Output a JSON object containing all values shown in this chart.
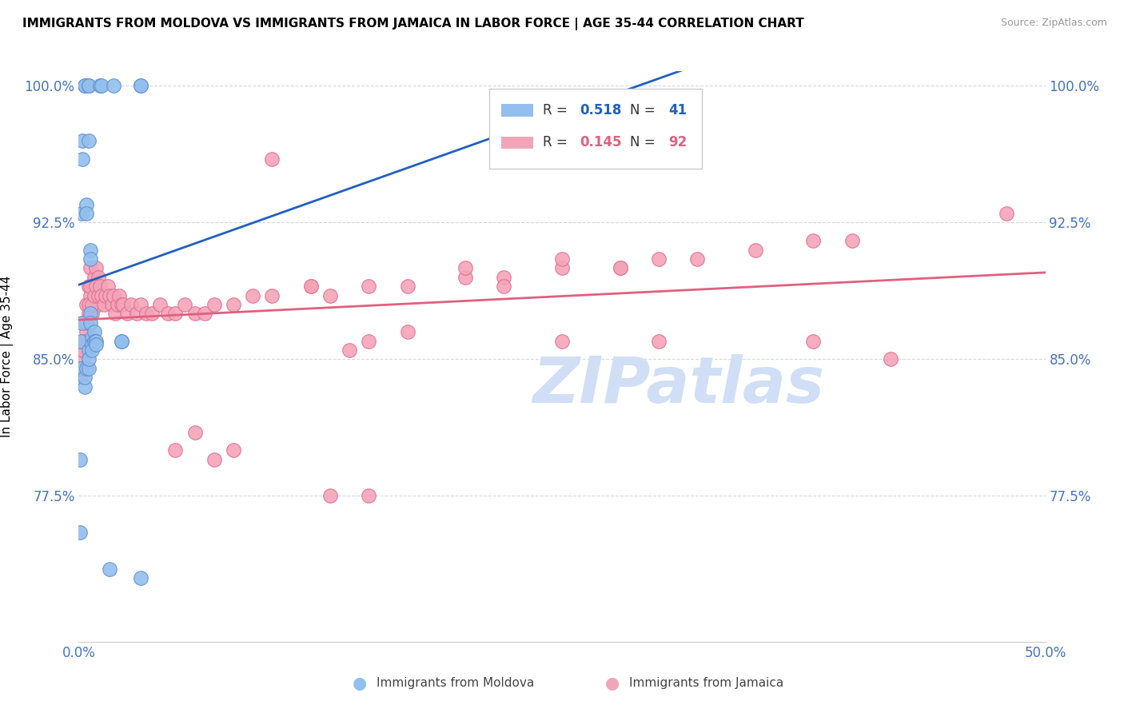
{
  "title": "IMMIGRANTS FROM MOLDOVA VS IMMIGRANTS FROM JAMAICA IN LABOR FORCE | AGE 35-44 CORRELATION CHART",
  "source": "Source: ZipAtlas.com",
  "ylabel": "In Labor Force | Age 35-44",
  "xlim": [
    0.0,
    0.5
  ],
  "ylim": [
    0.695,
    1.008
  ],
  "xticks": [
    0.0,
    0.1,
    0.2,
    0.3,
    0.4,
    0.5
  ],
  "xticklabels": [
    "0.0%",
    "",
    "",
    "",
    "",
    "50.0%"
  ],
  "yticks": [
    0.775,
    0.85,
    0.925,
    1.0
  ],
  "yticklabels": [
    "77.5%",
    "85.0%",
    "92.5%",
    "100.0%"
  ],
  "tick_color": "#4472C4",
  "grid_color": "#d0d8e8",
  "moldova_color": "#92BFEE",
  "jamaica_color": "#F4A4B8",
  "moldova_edge_color": "#6090CC",
  "jamaica_edge_color": "#E07090",
  "moldova_line_color": "#2060C0",
  "jamaica_line_color": "#E06080",
  "moldova_R": 0.518,
  "moldova_N": 41,
  "jamaica_R": 0.145,
  "jamaica_N": 92,
  "watermark": "ZIPatlas",
  "watermark_color": "#D0DFF5",
  "moldova_x": [
    0.0008,
    0.0008,
    0.001,
    0.001,
    0.0015,
    0.0015,
    0.002,
    0.002,
    0.003,
    0.003,
    0.003,
    0.003,
    0.004,
    0.004,
    0.004,
    0.005,
    0.005,
    0.005,
    0.005,
    0.005,
    0.005,
    0.006,
    0.006,
    0.006,
    0.006,
    0.007,
    0.007,
    0.007,
    0.008,
    0.008,
    0.009,
    0.009,
    0.011,
    0.012,
    0.016,
    0.018,
    0.022,
    0.022,
    0.032,
    0.032,
    0.032
  ],
  "moldova_y": [
    0.755,
    0.795,
    0.845,
    0.86,
    0.87,
    0.93,
    0.96,
    0.97,
    1.0,
    1.0,
    0.835,
    0.84,
    0.935,
    0.93,
    0.845,
    1.0,
    1.0,
    0.855,
    0.845,
    0.85,
    0.97,
    0.91,
    0.905,
    0.875,
    0.87,
    0.862,
    0.858,
    0.855,
    0.865,
    0.86,
    0.86,
    0.858,
    1.0,
    1.0,
    0.735,
    1.0,
    0.86,
    0.86,
    1.0,
    1.0,
    0.73
  ],
  "jamaica_x": [
    0.001,
    0.002,
    0.003,
    0.004,
    0.005,
    0.006,
    0.007,
    0.008,
    0.009,
    0.01,
    0.001,
    0.002,
    0.003,
    0.004,
    0.005,
    0.006,
    0.007,
    0.008,
    0.009,
    0.01,
    0.001,
    0.002,
    0.003,
    0.004,
    0.005,
    0.006,
    0.007,
    0.008,
    0.009,
    0.01,
    0.011,
    0.012,
    0.013,
    0.014,
    0.015,
    0.016,
    0.017,
    0.018,
    0.019,
    0.02,
    0.021,
    0.022,
    0.023,
    0.025,
    0.027,
    0.03,
    0.032,
    0.035,
    0.038,
    0.042,
    0.046,
    0.05,
    0.055,
    0.06,
    0.065,
    0.07,
    0.08,
    0.09,
    0.1,
    0.12,
    0.13,
    0.15,
    0.17,
    0.2,
    0.22,
    0.25,
    0.28,
    0.3,
    0.32,
    0.35,
    0.38,
    0.4,
    0.1,
    0.12,
    0.14,
    0.15,
    0.17,
    0.2,
    0.22,
    0.25,
    0.28,
    0.13,
    0.15,
    0.05,
    0.06,
    0.07,
    0.08,
    0.25,
    0.3,
    0.38,
    0.42,
    0.48
  ],
  "jamaica_y": [
    0.855,
    0.86,
    0.87,
    0.88,
    0.89,
    0.9,
    0.89,
    0.895,
    0.9,
    0.895,
    0.84,
    0.85,
    0.855,
    0.865,
    0.875,
    0.885,
    0.875,
    0.88,
    0.885,
    0.88,
    0.845,
    0.855,
    0.86,
    0.87,
    0.88,
    0.89,
    0.88,
    0.885,
    0.89,
    0.885,
    0.89,
    0.885,
    0.88,
    0.885,
    0.89,
    0.885,
    0.88,
    0.885,
    0.875,
    0.88,
    0.885,
    0.88,
    0.88,
    0.875,
    0.88,
    0.875,
    0.88,
    0.875,
    0.875,
    0.88,
    0.875,
    0.875,
    0.88,
    0.875,
    0.875,
    0.88,
    0.88,
    0.885,
    0.885,
    0.89,
    0.885,
    0.89,
    0.89,
    0.895,
    0.895,
    0.9,
    0.9,
    0.905,
    0.905,
    0.91,
    0.915,
    0.915,
    0.96,
    0.89,
    0.855,
    0.86,
    0.865,
    0.9,
    0.89,
    0.905,
    0.9,
    0.775,
    0.775,
    0.8,
    0.81,
    0.795,
    0.8,
    0.86,
    0.86,
    0.86,
    0.85,
    0.93
  ]
}
